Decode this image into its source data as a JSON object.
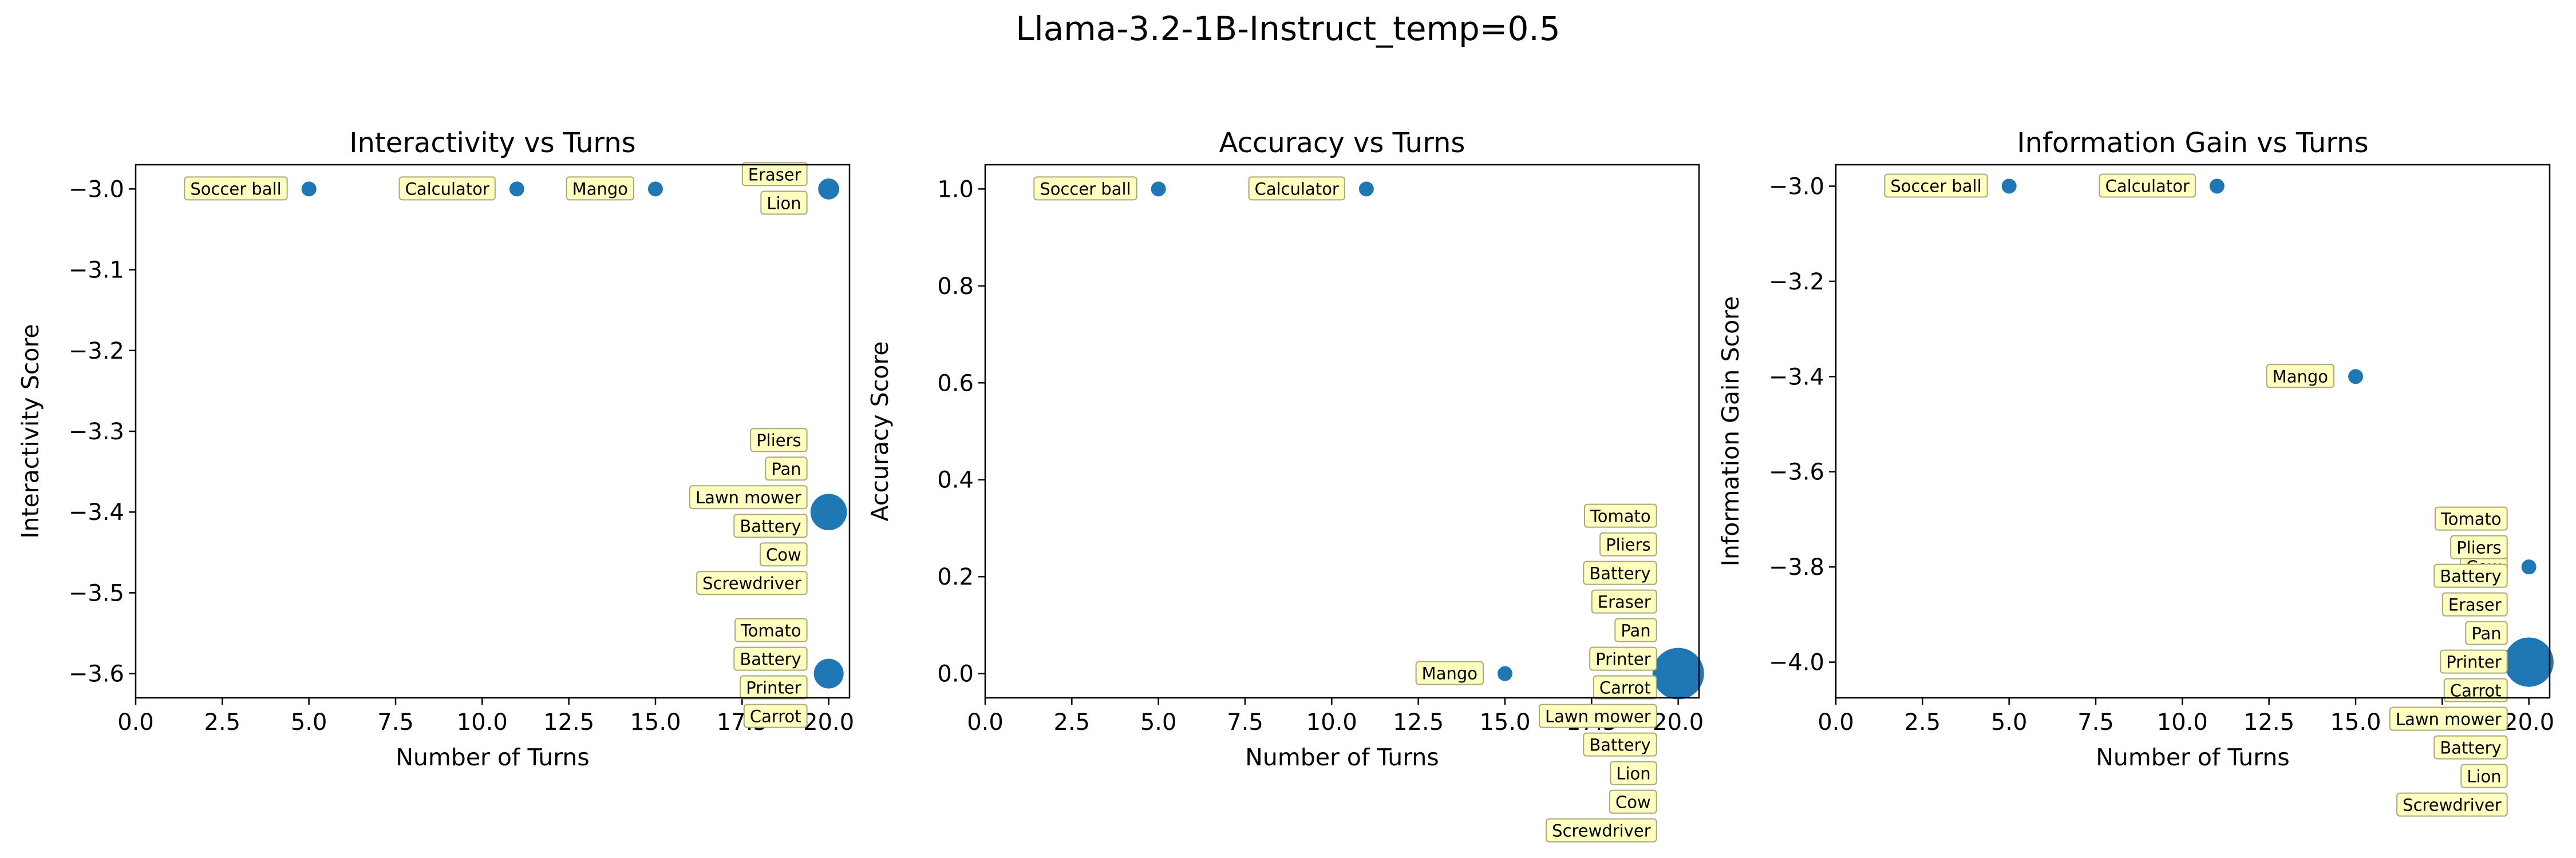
{
  "figure": {
    "suptitle": "Llama-3.2-1B-Instruct_temp=0.5"
  },
  "colors": {
    "point": "#1f77b4",
    "annotation_fill": "#ffffc0",
    "annotation_edge": "#a8a878"
  },
  "chart_data": [
    {
      "type": "scatter",
      "title": "Interactivity vs Turns",
      "xlabel": "Number of Turns",
      "ylabel": "Interactivity Score",
      "xlim": [
        0,
        20.6
      ],
      "ylim": [
        -3.63,
        -2.97
      ],
      "xticks": [
        0,
        2.5,
        5,
        7.5,
        10,
        12.5,
        15,
        17.5,
        20
      ],
      "xtick_labels": [
        "0.0",
        "2.5",
        "5.0",
        "7.5",
        "10.0",
        "12.5",
        "15.0",
        "17.5",
        "20.0"
      ],
      "yticks": [
        -3.0,
        -3.1,
        -3.2,
        -3.3,
        -3.4,
        -3.5,
        -3.6
      ],
      "ytick_labels": [
        "−3.0",
        "−3.1",
        "−3.2",
        "−3.3",
        "−3.4",
        "−3.5",
        "−3.6"
      ],
      "points": [
        {
          "x": 5,
          "y": -3.0,
          "count": 1,
          "labels": [
            "Soccer ball"
          ]
        },
        {
          "x": 11,
          "y": -3.0,
          "count": 1,
          "labels": [
            "Calculator"
          ]
        },
        {
          "x": 15,
          "y": -3.0,
          "count": 1,
          "labels": [
            "Mango"
          ]
        },
        {
          "x": 20,
          "y": -3.0,
          "count": 2,
          "labels": [
            "Eraser",
            "Lion"
          ]
        },
        {
          "x": 20,
          "y": -3.4,
          "count": 6,
          "labels": [
            "Pliers",
            "Pan",
            "Lawn mower",
            "Battery",
            "Cow",
            "Screwdriver"
          ]
        },
        {
          "x": 20,
          "y": -3.6,
          "count": 4,
          "labels": [
            "Tomato",
            "Battery",
            "Printer",
            "Carrot"
          ]
        }
      ]
    },
    {
      "type": "scatter",
      "title": "Accuracy vs Turns",
      "xlabel": "Number of Turns",
      "ylabel": "Accuracy Score",
      "xlim": [
        0,
        20.6
      ],
      "ylim": [
        -0.05,
        1.05
      ],
      "xticks": [
        0,
        2.5,
        5,
        7.5,
        10,
        12.5,
        15,
        17.5,
        20
      ],
      "xtick_labels": [
        "0.0",
        "2.5",
        "5.0",
        "7.5",
        "10.0",
        "12.5",
        "15.0",
        "17.5",
        "20.0"
      ],
      "yticks": [
        0,
        0.2,
        0.4,
        0.6,
        0.8,
        1.0
      ],
      "ytick_labels": [
        "0.0",
        "0.2",
        "0.4",
        "0.6",
        "0.8",
        "1.0"
      ],
      "points": [
        {
          "x": 5,
          "y": 1.0,
          "count": 1,
          "labels": [
            "Soccer ball"
          ]
        },
        {
          "x": 11,
          "y": 1.0,
          "count": 1,
          "labels": [
            "Calculator"
          ]
        },
        {
          "x": 15,
          "y": 0.0,
          "count": 1,
          "labels": [
            "Mango"
          ]
        },
        {
          "x": 20,
          "y": 0.0,
          "count": 12,
          "labels": [
            "Tomato",
            "Pliers",
            "Battery",
            "Eraser",
            "Pan",
            "Printer",
            "Carrot",
            "Lawn mower",
            "Battery",
            "Lion",
            "Cow",
            "Screwdriver"
          ]
        }
      ]
    },
    {
      "type": "scatter",
      "title": "Information Gain vs Turns",
      "xlabel": "Number of Turns",
      "ylabel": "Information Gain Score",
      "xlim": [
        0,
        20.6
      ],
      "ylim": [
        -4.075,
        -2.955
      ],
      "xticks": [
        0,
        2.5,
        5,
        7.5,
        10,
        12.5,
        15,
        17.5,
        20
      ],
      "xtick_labels": [
        "0.0",
        "2.5",
        "5.0",
        "7.5",
        "10.0",
        "12.5",
        "15.0",
        "17.5",
        "20.0"
      ],
      "yticks": [
        -3.0,
        -3.2,
        -3.4,
        -3.6,
        -3.8,
        -4.0
      ],
      "ytick_labels": [
        "−3.0",
        "−3.2",
        "−3.4",
        "−3.6",
        "−3.8",
        "−4.0"
      ],
      "points": [
        {
          "x": 5,
          "y": -3.0,
          "count": 1,
          "labels": [
            "Soccer ball"
          ]
        },
        {
          "x": 11,
          "y": -3.0,
          "count": 1,
          "labels": [
            "Calculator"
          ]
        },
        {
          "x": 15,
          "y": -3.4,
          "count": 1,
          "labels": [
            "Mango"
          ]
        },
        {
          "x": 20,
          "y": -3.8,
          "count": 1,
          "labels": [
            "Cow"
          ]
        },
        {
          "x": 20,
          "y": -4.0,
          "count": 11,
          "labels": [
            "Tomato",
            "Pliers",
            "Battery",
            "Eraser",
            "Pan",
            "Printer",
            "Carrot",
            "Lawn mower",
            "Battery",
            "Lion",
            "Screwdriver"
          ]
        }
      ]
    }
  ]
}
